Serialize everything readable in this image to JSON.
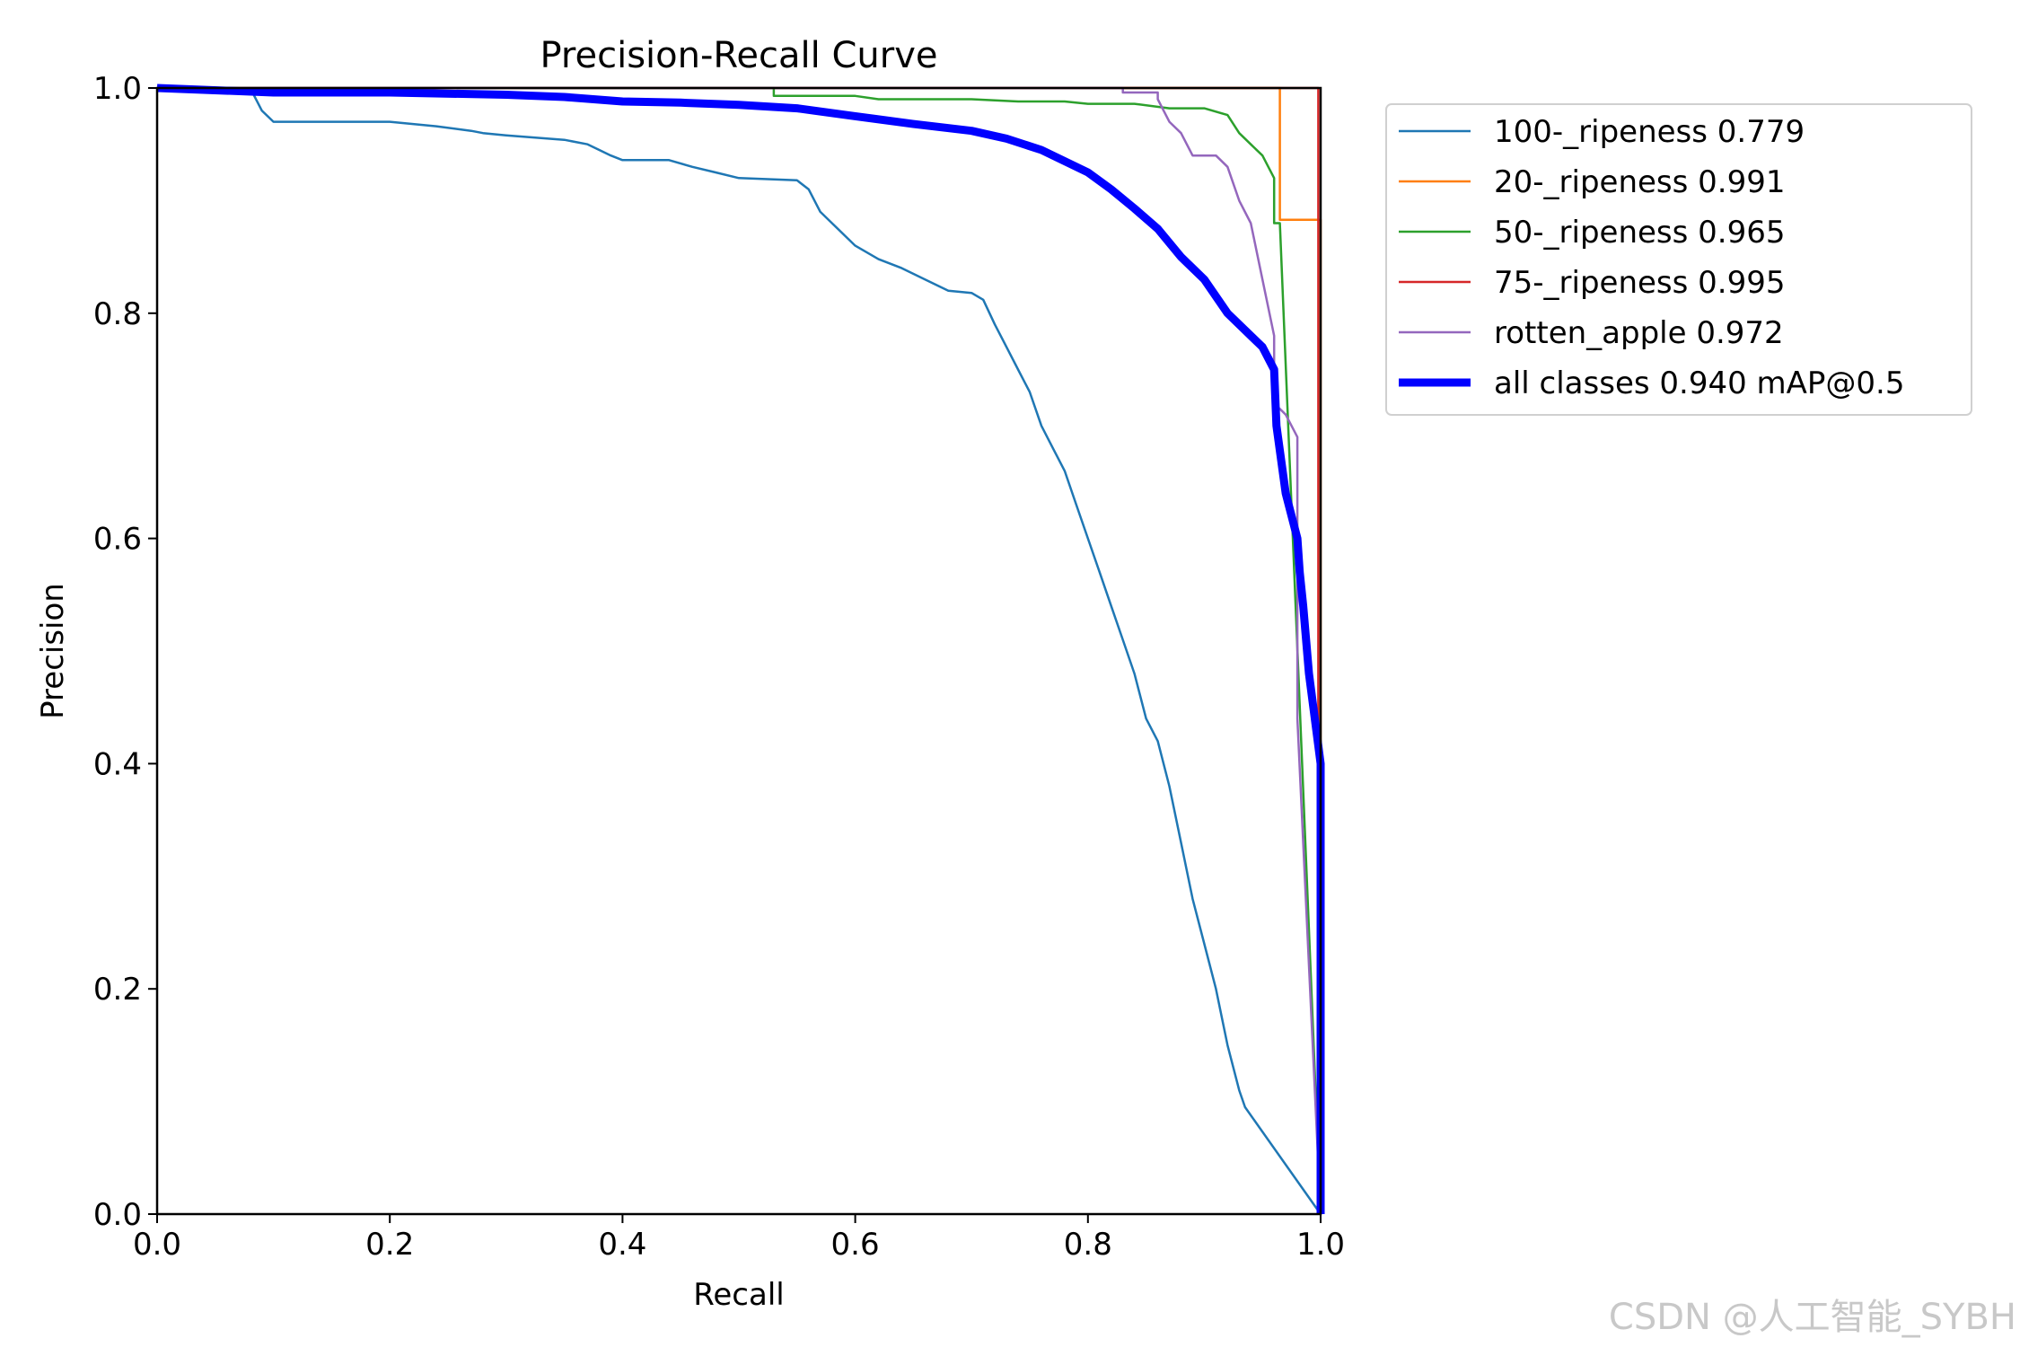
{
  "chart_data": {
    "type": "line",
    "title": "Precision-Recall Curve",
    "xlabel": "Recall",
    "ylabel": "Precision",
    "xlim": [
      0,
      1
    ],
    "ylim": [
      0,
      1
    ],
    "xticks": [
      "0.0",
      "0.2",
      "0.4",
      "0.6",
      "0.8",
      "1.0"
    ],
    "yticks": [
      "0.0",
      "0.2",
      "0.4",
      "0.6",
      "0.8",
      "1.0"
    ],
    "grid": false,
    "legend_position": "outside-top-right",
    "series": [
      {
        "name": "100-_ripeness 0.779",
        "color": "#1f77b4",
        "width": "thin",
        "points": [
          [
            0,
            1.0
          ],
          [
            0.08,
            1.0
          ],
          [
            0.09,
            0.98
          ],
          [
            0.1,
            0.97
          ],
          [
            0.15,
            0.97
          ],
          [
            0.2,
            0.97
          ],
          [
            0.24,
            0.966
          ],
          [
            0.27,
            0.962
          ],
          [
            0.28,
            0.96
          ],
          [
            0.3,
            0.958
          ],
          [
            0.35,
            0.954
          ],
          [
            0.37,
            0.95
          ],
          [
            0.38,
            0.945
          ],
          [
            0.39,
            0.94
          ],
          [
            0.4,
            0.936
          ],
          [
            0.44,
            0.936
          ],
          [
            0.46,
            0.93
          ],
          [
            0.48,
            0.925
          ],
          [
            0.5,
            0.92
          ],
          [
            0.55,
            0.918
          ],
          [
            0.56,
            0.91
          ],
          [
            0.57,
            0.89
          ],
          [
            0.58,
            0.88
          ],
          [
            0.6,
            0.86
          ],
          [
            0.62,
            0.848
          ],
          [
            0.64,
            0.84
          ],
          [
            0.66,
            0.83
          ],
          [
            0.68,
            0.82
          ],
          [
            0.7,
            0.818
          ],
          [
            0.71,
            0.812
          ],
          [
            0.72,
            0.79
          ],
          [
            0.73,
            0.77
          ],
          [
            0.74,
            0.75
          ],
          [
            0.75,
            0.73
          ],
          [
            0.76,
            0.7
          ],
          [
            0.77,
            0.68
          ],
          [
            0.78,
            0.66
          ],
          [
            0.79,
            0.63
          ],
          [
            0.8,
            0.6
          ],
          [
            0.81,
            0.57
          ],
          [
            0.82,
            0.54
          ],
          [
            0.83,
            0.51
          ],
          [
            0.84,
            0.48
          ],
          [
            0.85,
            0.44
          ],
          [
            0.86,
            0.42
          ],
          [
            0.87,
            0.38
          ],
          [
            0.88,
            0.33
          ],
          [
            0.89,
            0.28
          ],
          [
            0.9,
            0.24
          ],
          [
            0.91,
            0.2
          ],
          [
            0.92,
            0.15
          ],
          [
            0.93,
            0.11
          ],
          [
            0.935,
            0.095
          ],
          [
            1.0,
            0.0
          ]
        ]
      },
      {
        "name": "20-_ripeness 0.991",
        "color": "#ff7f0e",
        "width": "thin",
        "points": [
          [
            0,
            1.0
          ],
          [
            0.965,
            1.0
          ],
          [
            0.965,
            0.883
          ],
          [
            1.0,
            0.883
          ],
          [
            1.0,
            0.0
          ]
        ]
      },
      {
        "name": "50-_ripeness 0.965",
        "color": "#2ca02c",
        "width": "thin",
        "points": [
          [
            0,
            1.0
          ],
          [
            0.53,
            1.0
          ],
          [
            0.53,
            0.993
          ],
          [
            0.6,
            0.993
          ],
          [
            0.62,
            0.99
          ],
          [
            0.7,
            0.99
          ],
          [
            0.74,
            0.988
          ],
          [
            0.78,
            0.988
          ],
          [
            0.8,
            0.986
          ],
          [
            0.84,
            0.986
          ],
          [
            0.87,
            0.982
          ],
          [
            0.9,
            0.982
          ],
          [
            0.92,
            0.976
          ],
          [
            0.93,
            0.96
          ],
          [
            0.94,
            0.95
          ],
          [
            0.95,
            0.94
          ],
          [
            0.96,
            0.92
          ],
          [
            0.96,
            0.88
          ],
          [
            0.965,
            0.88
          ],
          [
            1.0,
            0.0
          ]
        ]
      },
      {
        "name": "75-_ripeness 0.995",
        "color": "#d62728",
        "width": "thin",
        "points": [
          [
            0,
            1.0
          ],
          [
            0.998,
            1.0
          ],
          [
            0.998,
            0.0
          ]
        ]
      },
      {
        "name": "rotten_apple 0.972",
        "color": "#9467bd",
        "width": "thin",
        "points": [
          [
            0,
            1.0
          ],
          [
            0.83,
            1.0
          ],
          [
            0.83,
            0.996
          ],
          [
            0.86,
            0.996
          ],
          [
            0.86,
            0.99
          ],
          [
            0.87,
            0.97
          ],
          [
            0.88,
            0.96
          ],
          [
            0.89,
            0.94
          ],
          [
            0.91,
            0.94
          ],
          [
            0.92,
            0.93
          ],
          [
            0.93,
            0.9
          ],
          [
            0.94,
            0.88
          ],
          [
            0.95,
            0.83
          ],
          [
            0.96,
            0.78
          ],
          [
            0.96,
            0.72
          ],
          [
            0.97,
            0.71
          ],
          [
            0.98,
            0.69
          ],
          [
            0.98,
            0.44
          ],
          [
            1.0,
            0.0
          ]
        ]
      },
      {
        "name": "all classes 0.940 mAP@0.5",
        "color": "#0000ff",
        "width": "thick",
        "points": [
          [
            0,
            1.0
          ],
          [
            0.1,
            0.996
          ],
          [
            0.2,
            0.996
          ],
          [
            0.3,
            0.994
          ],
          [
            0.35,
            0.992
          ],
          [
            0.4,
            0.988
          ],
          [
            0.45,
            0.987
          ],
          [
            0.5,
            0.985
          ],
          [
            0.55,
            0.982
          ],
          [
            0.6,
            0.975
          ],
          [
            0.65,
            0.968
          ],
          [
            0.7,
            0.962
          ],
          [
            0.73,
            0.955
          ],
          [
            0.76,
            0.945
          ],
          [
            0.78,
            0.935
          ],
          [
            0.8,
            0.925
          ],
          [
            0.82,
            0.91
          ],
          [
            0.84,
            0.893
          ],
          [
            0.86,
            0.875
          ],
          [
            0.88,
            0.85
          ],
          [
            0.9,
            0.83
          ],
          [
            0.92,
            0.8
          ],
          [
            0.94,
            0.78
          ],
          [
            0.95,
            0.77
          ],
          [
            0.96,
            0.75
          ],
          [
            0.962,
            0.7
          ],
          [
            0.97,
            0.64
          ],
          [
            0.98,
            0.6
          ],
          [
            0.982,
            0.57
          ],
          [
            0.985,
            0.54
          ],
          [
            0.99,
            0.48
          ],
          [
            0.995,
            0.44
          ],
          [
            1.0,
            0.4
          ],
          [
            1.0,
            0.0
          ]
        ]
      }
    ]
  },
  "watermark": "CSDN @人工智能_SYBH"
}
